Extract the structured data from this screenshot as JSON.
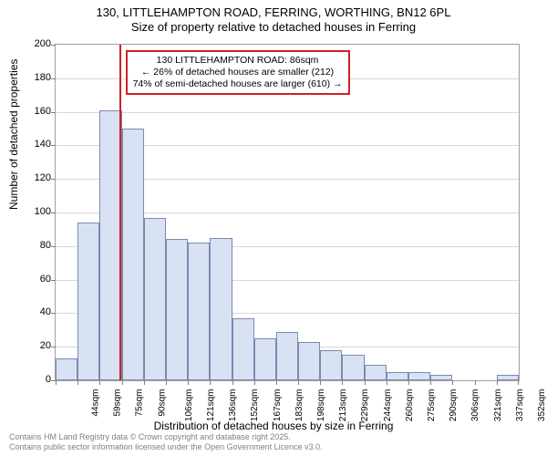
{
  "title": {
    "line1": "130, LITTLEHAMPTON ROAD, FERRING, WORTHING, BN12 6PL",
    "line2": "Size of property relative to detached houses in Ferring"
  },
  "chart": {
    "type": "histogram",
    "background_color": "#ffffff",
    "border_color": "#a0a0a0",
    "grid_color": "#d8d8d8",
    "bar_fill": "#d9e2f3",
    "bar_border": "#7a8ab0",
    "highlight_color": "#d02020",
    "ylim": [
      0,
      200
    ],
    "ytick_step": 20,
    "y_axis_label": "Number of detached properties",
    "x_axis_label": "Distribution of detached houses by size in Ferring",
    "x_categories": [
      "44sqm",
      "59sqm",
      "75sqm",
      "90sqm",
      "106sqm",
      "121sqm",
      "136sqm",
      "152sqm",
      "167sqm",
      "183sqm",
      "198sqm",
      "213sqm",
      "229sqm",
      "244sqm",
      "260sqm",
      "275sqm",
      "290sqm",
      "306sqm",
      "321sqm",
      "337sqm",
      "352sqm"
    ],
    "values": [
      13,
      94,
      161,
      150,
      97,
      84,
      82,
      85,
      37,
      25,
      29,
      23,
      18,
      15,
      9,
      5,
      5,
      3,
      0,
      0,
      3
    ],
    "highlight_index": 3,
    "annotation": {
      "line1": "130 LITTLEHAMPTON ROAD: 86sqm",
      "line2": "← 26% of detached houses are smaller (212)",
      "line3": "74% of semi-detached houses are larger (610) →"
    },
    "label_fontsize": 12,
    "tick_fontsize": 11,
    "annotation_fontsize": 10.5
  },
  "footer": {
    "line1": "Contains HM Land Registry data © Crown copyright and database right 2025.",
    "line2": "Contains public sector information licensed under the Open Government Licence v3.0."
  }
}
